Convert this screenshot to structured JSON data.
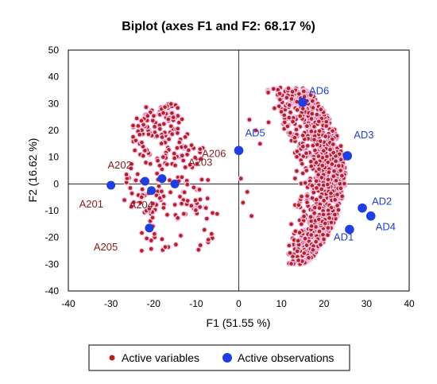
{
  "chart_data": {
    "type": "scatter",
    "title": "Biplot (axes F1 and F2: 68.17 %)",
    "xlabel": "F1 (51.55 %)",
    "ylabel": "F2 (16.62 %)",
    "xlim": [
      -40,
      40
    ],
    "ylim": [
      -40,
      50
    ],
    "xticks": [
      -40,
      -30,
      -20,
      -10,
      0,
      10,
      20,
      30,
      40
    ],
    "yticks": [
      -40,
      -30,
      -20,
      -10,
      0,
      10,
      20,
      30,
      40,
      50
    ],
    "legend_position": "bottom",
    "colors": {
      "variables": "#b22222",
      "variable_halo": "#f4c2e6",
      "observations": "#1f3fe0",
      "observation_label": "#1f3fcf",
      "variable_label": "#8b1a1a"
    },
    "series": [
      {
        "name": "Active variables",
        "labeled_points": [
          {
            "label": "A201",
            "x": -30,
            "y": -0.5
          },
          {
            "label": "A202",
            "x": -22,
            "y": 1
          },
          {
            "label": "A203",
            "x": -18,
            "y": 2
          },
          {
            "label": "A204",
            "x": -20.5,
            "y": -2.5
          },
          {
            "label": "A205",
            "x": -21,
            "y": -16.5
          },
          {
            "label": "A206",
            "x": -15,
            "y": 0
          }
        ],
        "clusters": [
          {
            "region": "left",
            "x_range": [
              -28,
              -6
            ],
            "y_range": [
              -25,
              30
            ],
            "count": 260
          },
          {
            "region": "right",
            "x_range": [
              5,
              28
            ],
            "y_range": [
              -30,
              36
            ],
            "count": 900
          }
        ]
      },
      {
        "name": "Active observations",
        "points": [
          {
            "label": "AD1",
            "x": 26,
            "y": -17
          },
          {
            "label": "AD2",
            "x": 29,
            "y": -9
          },
          {
            "label": "AD3",
            "x": 25.5,
            "y": 10.5
          },
          {
            "label": "AD4",
            "x": 31,
            "y": -12
          },
          {
            "label": "AD5",
            "x": 0,
            "y": 12.5
          },
          {
            "label": "AD6",
            "x": 15,
            "y": 30.5
          }
        ]
      }
    ]
  },
  "legend": {
    "variables_label": "Active variables",
    "observations_label": "Active observations"
  }
}
